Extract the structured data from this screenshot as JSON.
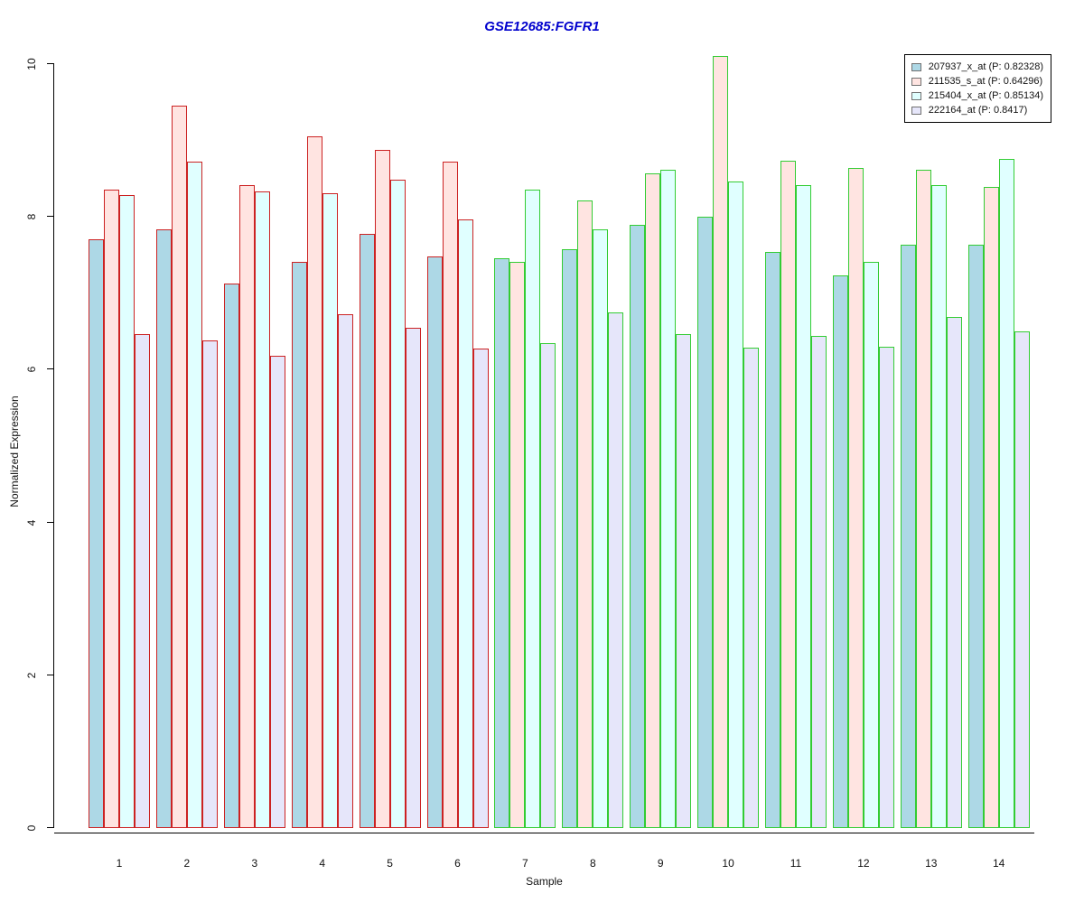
{
  "title": "GSE12685:FGFR1",
  "title_color": "#0000CD",
  "xlabel": "Sample",
  "ylabel": "Normalized Expression",
  "chart_data": {
    "type": "bar",
    "title": "GSE12685:FGFR1",
    "xlabel": "Sample",
    "ylabel": "Normalized Expression",
    "categories": [
      "1",
      "2",
      "3",
      "4",
      "5",
      "6",
      "7",
      "8",
      "9",
      "10",
      "11",
      "12",
      "13",
      "14"
    ],
    "series": [
      {
        "name": "207937_x_at (P: 0.82328)",
        "fill": "#ADD8E6",
        "values": [
          7.7,
          7.84,
          7.13,
          7.41,
          7.78,
          7.48,
          7.46,
          7.58,
          7.89,
          8.0,
          7.54,
          7.23,
          7.63,
          7.64
        ]
      },
      {
        "name": "211535_s_at (P: 0.64296)",
        "fill": "#FFE4E1",
        "values": [
          8.36,
          9.45,
          8.42,
          9.05,
          8.87,
          8.72,
          7.41,
          8.21,
          8.57,
          10.1,
          8.73,
          8.64,
          8.61,
          8.39
        ]
      },
      {
        "name": "215404_x_at (P: 0.85134)",
        "fill": "#E0FFFF",
        "values": [
          8.28,
          8.72,
          8.33,
          8.31,
          8.49,
          7.97,
          8.36,
          7.84,
          8.62,
          8.46,
          8.41,
          7.41,
          8.42,
          8.76
        ]
      },
      {
        "name": "222164_at (P: 0.8417)",
        "fill": "#E6E6FA",
        "values": [
          6.46,
          6.38,
          6.18,
          6.72,
          6.55,
          6.28,
          6.35,
          6.75,
          6.47,
          6.29,
          6.44,
          6.3,
          6.69,
          6.5
        ]
      }
    ],
    "category_border_colors": [
      "#CC2222",
      "#CC2222",
      "#CC2222",
      "#CC2222",
      "#CC2222",
      "#CC2222",
      "#33CC33",
      "#33CC33",
      "#33CC33",
      "#33CC33",
      "#33CC33",
      "#33CC33",
      "#33CC33",
      "#33CC33"
    ],
    "yticks": [
      0,
      2,
      4,
      6,
      8,
      10
    ],
    "ylim": [
      0,
      10.14
    ],
    "grid": false,
    "legend_position": "top-right"
  }
}
